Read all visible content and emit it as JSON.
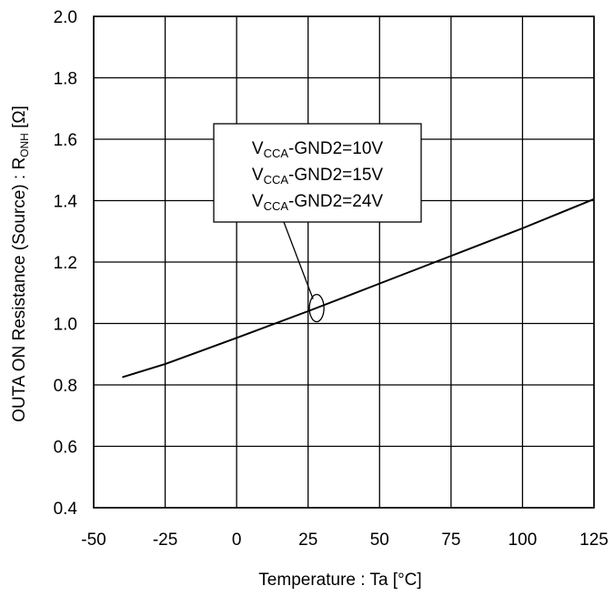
{
  "chart_data": {
    "type": "line",
    "title": "",
    "xlabel": "Temperature : Ta [°C]",
    "ylabel_main": "OUTA ON Resistance (Source) : R",
    "ylabel_sub": "ONH",
    "ylabel_unit": " [Ω]",
    "xlim": [
      -50,
      125
    ],
    "ylim": [
      0.4,
      2.0
    ],
    "xticks": [
      -50,
      -25,
      0,
      25,
      50,
      75,
      100,
      125
    ],
    "yticks": [
      0.4,
      0.6,
      0.8,
      1.0,
      1.2,
      1.4,
      1.6,
      1.8,
      2.0
    ],
    "xtick_labels": [
      "-50",
      "-25",
      "0",
      "25",
      "50",
      "75",
      "100",
      "125"
    ],
    "ytick_labels": [
      "0.4",
      "0.6",
      "0.8",
      "1.0",
      "1.2",
      "1.4",
      "1.6",
      "1.8",
      "2.0"
    ],
    "grid": true,
    "series": [
      {
        "x": [
          -40,
          -25,
          0,
          25,
          50,
          75,
          100,
          125
        ],
        "y": [
          0.825,
          0.868,
          0.953,
          1.04,
          1.13,
          1.22,
          1.31,
          1.405
        ]
      }
    ],
    "annotation": {
      "lines": [
        {
          "pre": "V",
          "sub": "CCA",
          "post": "-GND2=10V"
        },
        {
          "pre": "V",
          "sub": "CCA",
          "post": "-GND2=15V"
        },
        {
          "pre": "V",
          "sub": "CCA",
          "post": "-GND2=24V"
        }
      ],
      "target_x": 28,
      "target_y": 1.05
    }
  }
}
